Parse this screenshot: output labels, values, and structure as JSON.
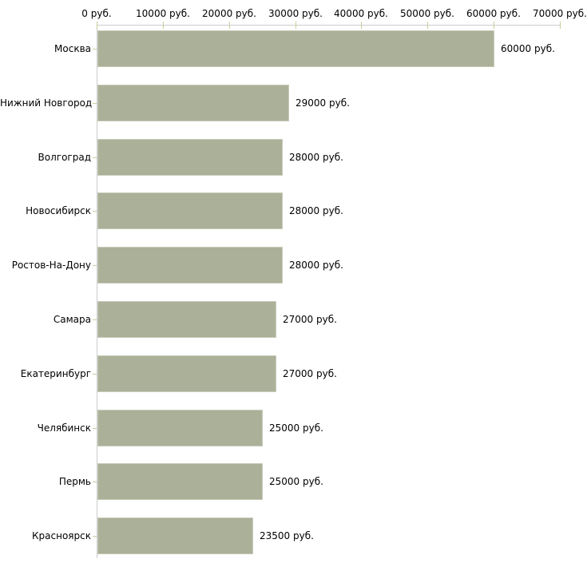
{
  "chart_data": {
    "type": "bar",
    "orientation": "horizontal",
    "title": "",
    "categories": [
      "Москва",
      "Нижний Новгород",
      "Волгоград",
      "Новосибирск",
      "Ростов-На-Дону",
      "Самара",
      "Екатеринбург",
      "Челябинск",
      "Пермь",
      "Красноярск"
    ],
    "values": [
      60000,
      29000,
      28000,
      28000,
      28000,
      27000,
      27000,
      25000,
      25000,
      23500
    ],
    "value_labels": [
      "60000 руб.",
      "29000 руб.",
      "28000 руб.",
      "28000 руб.",
      "28000 руб.",
      "27000 руб.",
      "27000 руб.",
      "25000 руб.",
      "25000 руб.",
      "23500 руб."
    ],
    "x_axis": {
      "position": "top",
      "min": 0,
      "max": 70000,
      "tick_values": [
        0,
        10000,
        20000,
        30000,
        40000,
        50000,
        60000,
        70000
      ],
      "tick_labels": [
        "0 руб.",
        "10000 руб.",
        "20000 руб.",
        "30000 руб.",
        "40000 руб.",
        "50000 руб.",
        "60000 руб.",
        "70000 руб."
      ]
    },
    "grid": false,
    "legend": false,
    "colors": {
      "bar": "#abb199",
      "bar_border": "#c6cbb8",
      "axis_line": "#cccccc",
      "tick_mark": "#cccc99",
      "text": "#000000",
      "background": "#ffffff"
    }
  }
}
